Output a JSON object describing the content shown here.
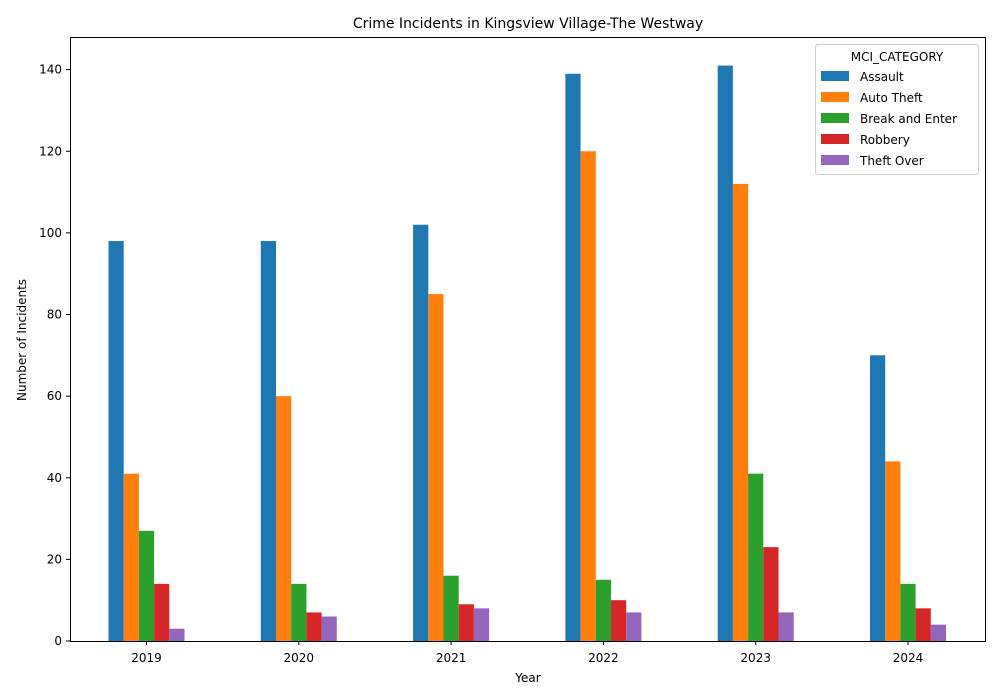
{
  "chart_data": {
    "type": "bar",
    "title": "Crime Incidents in Kingsview Village-The Westway",
    "xlabel": "Year",
    "ylabel": "Number of Incidents",
    "categories": [
      "2019",
      "2020",
      "2021",
      "2022",
      "2023",
      "2024"
    ],
    "ylim": [
      0,
      148
    ],
    "yticks": [
      0,
      20,
      40,
      60,
      80,
      100,
      120,
      140
    ],
    "grid": false,
    "legend": {
      "title": "MCI_CATEGORY",
      "placement": "top-right"
    },
    "series": [
      {
        "name": "Assault",
        "color": "#1f77b4",
        "values": [
          98,
          98,
          102,
          139,
          141,
          70
        ]
      },
      {
        "name": "Auto Theft",
        "color": "#ff7f0e",
        "values": [
          41,
          60,
          85,
          120,
          112,
          44
        ]
      },
      {
        "name": "Break and Enter",
        "color": "#2ca02c",
        "values": [
          27,
          14,
          16,
          15,
          41,
          14
        ]
      },
      {
        "name": "Robbery",
        "color": "#d62728",
        "values": [
          14,
          7,
          9,
          10,
          23,
          8
        ]
      },
      {
        "name": "Theft Over",
        "color": "#9467bd",
        "values": [
          3,
          6,
          8,
          7,
          7,
          4
        ]
      }
    ]
  }
}
